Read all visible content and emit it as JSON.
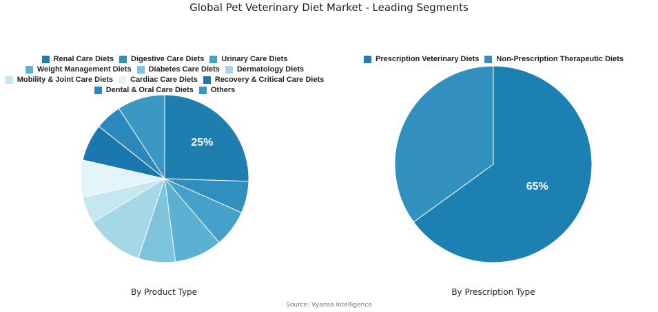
{
  "title": "Global Pet Veterinary Diet Market - Leading Segments",
  "source": "Source: Vyansa Intelligence",
  "chart_data": [
    {
      "type": "pie",
      "subtitle": "By Product Type",
      "legend_position": "top",
      "slices": [
        {
          "name": "Renal Care Diets",
          "value": 25,
          "color": "#1f7eb0",
          "label": "25%"
        },
        {
          "name": "Digestive Care Diets",
          "value": 6,
          "color": "#2f8fbf",
          "label": ""
        },
        {
          "name": "Urinary Care Diets",
          "value": 7,
          "color": "#45a1c9",
          "label": ""
        },
        {
          "name": "Weight Management Diets",
          "value": 9,
          "color": "#5cb0d2",
          "label": ""
        },
        {
          "name": "Diabetes Care Diets",
          "value": 7,
          "color": "#7dc4dc",
          "label": ""
        },
        {
          "name": "Dermatology Diets",
          "value": 11,
          "color": "#a5d8e6",
          "label": ""
        },
        {
          "name": "Mobility & Joint Care Diets",
          "value": 5,
          "color": "#c5e7ef",
          "label": ""
        },
        {
          "name": "Cardiac Care Diets",
          "value": 7,
          "color": "#e3f4f9",
          "label": ""
        },
        {
          "name": "Recovery & Critical Care Diets",
          "value": 7,
          "color": "#1a78ae",
          "label": ""
        },
        {
          "name": "Dental & Oral Care Diets",
          "value": 5,
          "color": "#2a88ba",
          "label": ""
        },
        {
          "name": "Others",
          "value": 9,
          "color": "#3b98c4",
          "label": ""
        }
      ]
    },
    {
      "type": "pie",
      "subtitle": "By Prescription Type",
      "legend_position": "top",
      "slices": [
        {
          "name": "Prescription Veterinary Diets",
          "value": 65,
          "color": "#1d80b2",
          "label": "65%"
        },
        {
          "name": "Non-Prescription Therapeutic Diets",
          "value": 35,
          "color": "#3190be",
          "label": ""
        }
      ]
    }
  ]
}
